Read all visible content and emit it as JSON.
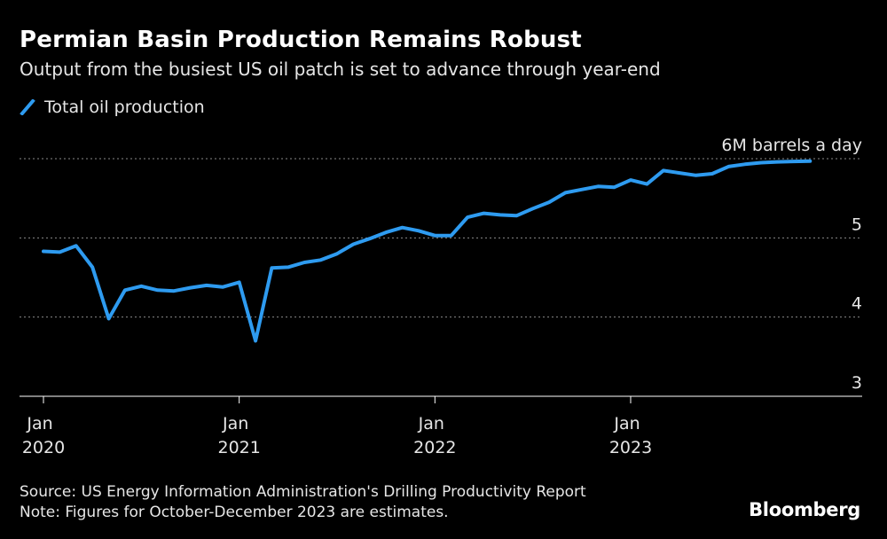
{
  "header": {
    "title": "Permian Basin Production Remains Robust",
    "subtitle": "Output from the busiest US oil patch is set to advance through year-end"
  },
  "legend": {
    "label": "Total oil production",
    "color": "#2e9bf0"
  },
  "footer": {
    "source": "Source: US Energy Information Administration's Drilling Productivity Report",
    "note": "Note: Figures for October-December 2023 are estimates.",
    "brand": "Bloomberg"
  },
  "chart_data": {
    "type": "line",
    "title": "Permian Basin Production Remains Robust",
    "subtitle": "Output from the busiest US oil patch is set to advance through year-end",
    "ylabel": "",
    "unit_label": "6M barrels a day",
    "ylim": [
      3,
      6
    ],
    "yticks": [
      3,
      4,
      5,
      6
    ],
    "ytick_labels": [
      "3",
      "4",
      "5",
      "6M barrels a day"
    ],
    "grid": true,
    "legend_position": "top-left",
    "xticks": [
      {
        "x": "2020-01",
        "line1": "Jan",
        "line2": "2020"
      },
      {
        "x": "2021-01",
        "line1": "Jan",
        "line2": "2021"
      },
      {
        "x": "2022-01",
        "line1": "Jan",
        "line2": "2022"
      },
      {
        "x": "2023-01",
        "line1": "Jan",
        "line2": "2023"
      }
    ],
    "series": [
      {
        "name": "Total oil production",
        "color": "#2e9bf0",
        "x": [
          "2020-01",
          "2020-02",
          "2020-03",
          "2020-04",
          "2020-05",
          "2020-06",
          "2020-07",
          "2020-08",
          "2020-09",
          "2020-10",
          "2020-11",
          "2020-12",
          "2021-01",
          "2021-02",
          "2021-03",
          "2021-04",
          "2021-05",
          "2021-06",
          "2021-07",
          "2021-08",
          "2021-09",
          "2021-10",
          "2021-11",
          "2021-12",
          "2022-01",
          "2022-02",
          "2022-03",
          "2022-04",
          "2022-05",
          "2022-06",
          "2022-07",
          "2022-08",
          "2022-09",
          "2022-10",
          "2022-11",
          "2022-12",
          "2023-01",
          "2023-02",
          "2023-03",
          "2023-04",
          "2023-05",
          "2023-06",
          "2023-07",
          "2023-08",
          "2023-09",
          "2023-10",
          "2023-11",
          "2023-12"
        ],
        "values": [
          4.83,
          4.82,
          4.9,
          4.63,
          3.98,
          4.34,
          4.39,
          4.34,
          4.33,
          4.37,
          4.4,
          4.38,
          4.44,
          3.7,
          4.62,
          4.63,
          4.69,
          4.72,
          4.8,
          4.92,
          4.99,
          5.07,
          5.13,
          5.09,
          5.03,
          5.03,
          5.26,
          5.31,
          5.29,
          5.28,
          5.37,
          5.45,
          5.57,
          5.61,
          5.65,
          5.64,
          5.73,
          5.68,
          5.85,
          5.82,
          5.79,
          5.81,
          5.9,
          5.93,
          5.95,
          5.96,
          5.965,
          5.97
        ]
      }
    ]
  }
}
